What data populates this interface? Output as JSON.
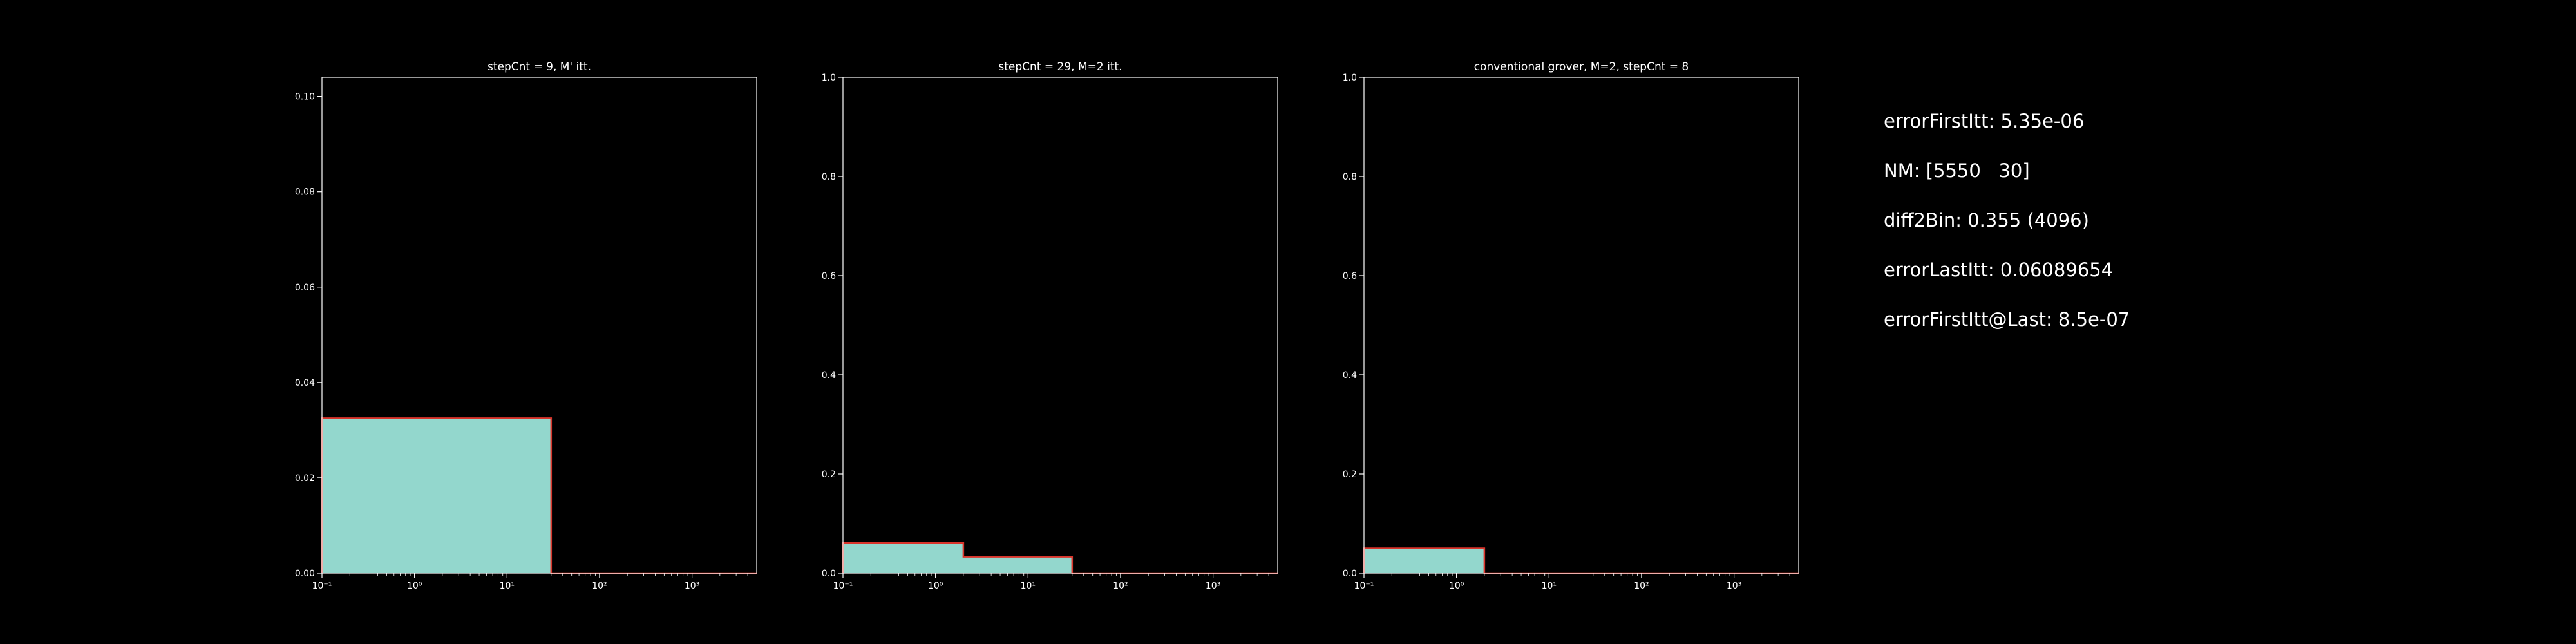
{
  "chart_data": [
    {
      "type": "histogram",
      "title": "stepCnt = 9, M' itt.",
      "xscale": "log",
      "xlim": [
        0.1,
        5000
      ],
      "ylim": [
        0,
        0.104
      ],
      "xticks": [
        0.1,
        1,
        10,
        100,
        1000
      ],
      "xtick_labels": [
        "10⁻¹",
        "10⁰",
        "10¹",
        "10²",
        "10³"
      ],
      "yticks": [
        0,
        0.02,
        0.04,
        0.06,
        0.08,
        0.1
      ],
      "ytick_labels": [
        "0.00",
        "0.02",
        "0.04",
        "0.06",
        "0.08",
        "0.10"
      ],
      "bins": [
        {
          "x0": 0.1,
          "x1": 30,
          "value": 0.0325
        },
        {
          "x0": 30,
          "x1": 5000,
          "value": 0
        }
      ],
      "fill_color": "#93d7cd",
      "edge_color": "#d9342b"
    },
    {
      "type": "histogram",
      "title": "stepCnt = 29, M=2 itt.",
      "xscale": "log",
      "xlim": [
        0.1,
        5000
      ],
      "ylim": [
        0,
        1.0
      ],
      "xticks": [
        0.1,
        1,
        10,
        100,
        1000
      ],
      "xtick_labels": [
        "10⁻¹",
        "10⁰",
        "10¹",
        "10²",
        "10³"
      ],
      "yticks": [
        0,
        0.2,
        0.4,
        0.6,
        0.8,
        1.0
      ],
      "ytick_labels": [
        "0.0",
        "0.2",
        "0.4",
        "0.6",
        "0.8",
        "1.0"
      ],
      "bins": [
        {
          "x0": 0.1,
          "x1": 2,
          "value": 0.061
        },
        {
          "x0": 2,
          "x1": 30,
          "value": 0.033
        },
        {
          "x0": 30,
          "x1": 5000,
          "value": 0
        }
      ],
      "fill_color": "#93d7cd",
      "edge_color": "#d9342b"
    },
    {
      "type": "histogram",
      "title": "conventional grover, M=2, stepCnt = 8",
      "xscale": "log",
      "xlim": [
        0.1,
        5000
      ],
      "ylim": [
        0,
        1.0
      ],
      "xticks": [
        0.1,
        1,
        10,
        100,
        1000
      ],
      "xtick_labels": [
        "10⁻¹",
        "10⁰",
        "10¹",
        "10²",
        "10³"
      ],
      "yticks": [
        0,
        0.2,
        0.4,
        0.6,
        0.8,
        1.0
      ],
      "ytick_labels": [
        "0.0",
        "0.2",
        "0.4",
        "0.6",
        "0.8",
        "1.0"
      ],
      "bins": [
        {
          "x0": 0.1,
          "x1": 2,
          "value": 0.05
        },
        {
          "x0": 2,
          "x1": 5000,
          "value": 0
        }
      ],
      "fill_color": "#93d7cd",
      "edge_color": "#d9342b"
    }
  ],
  "info": {
    "error_first_itt": "errorFirstItt: 5.35e-06",
    "nm": "NM: [5550   30]",
    "diff2bin": "diff2Bin: 0.355 (4096)",
    "error_last_itt": "errorLastItt: 0.06089654",
    "error_first_itt_at_last": "errorFirstItt@Last: 8.5e-07"
  },
  "colors": {
    "background": "#000000",
    "axes": "#ffffff",
    "text": "#ffffff"
  }
}
